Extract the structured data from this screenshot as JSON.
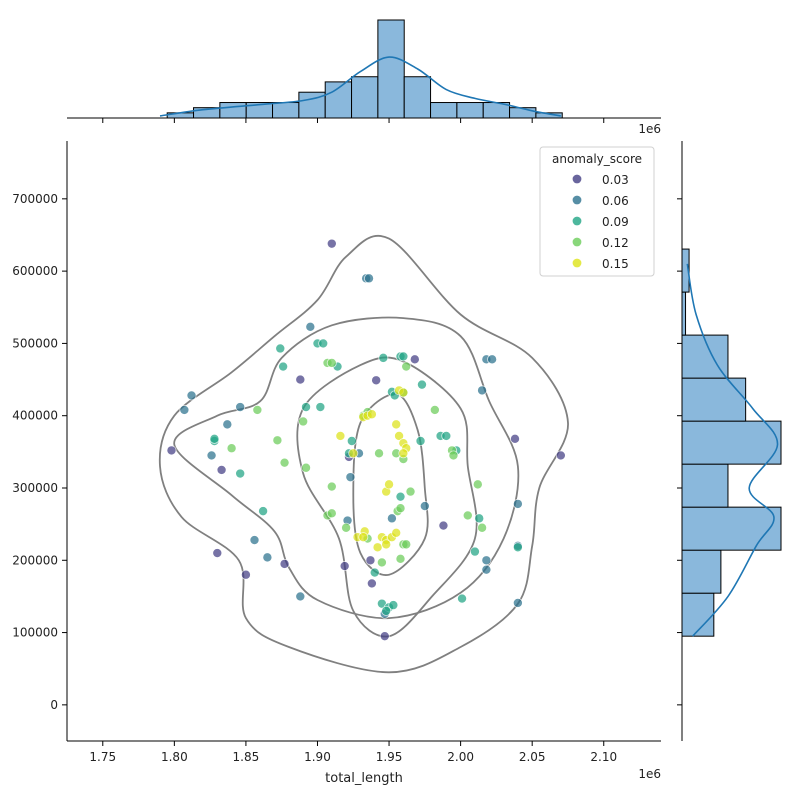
{
  "chart_data": {
    "type": "scatter",
    "xlabel": "total_length",
    "ylabel": "",
    "x_offset_label": "1e6",
    "xlim": [
      1.725,
      2.14
    ],
    "ylim": [
      -50000,
      780000
    ],
    "xticks": [
      1.75,
      1.8,
      1.85,
      1.9,
      1.95,
      2.0,
      2.05,
      2.1
    ],
    "yticks": [
      0,
      100000,
      200000,
      300000,
      400000,
      500000,
      600000,
      700000
    ],
    "legend": {
      "title": "anomaly_score",
      "placement": "top-right",
      "entries": [
        {
          "label": "0.03",
          "color": "#433e85"
        },
        {
          "label": "0.06",
          "color": "#2c728e"
        },
        {
          "label": "0.09",
          "color": "#21a585"
        },
        {
          "label": "0.12",
          "color": "#6ccd5a"
        },
        {
          "label": "0.15",
          "color": "#dde318"
        }
      ]
    },
    "marginal_x": {
      "bin_start": 1.795,
      "bin_width": 0.0184,
      "counts": [
        1,
        2,
        3,
        3,
        3,
        5,
        7,
        8,
        19,
        8,
        3,
        3,
        3,
        2,
        1
      ]
    },
    "marginal_x_kde": [
      [
        1.79,
        0.4
      ],
      [
        1.82,
        1.6
      ],
      [
        1.86,
        2.6
      ],
      [
        1.89,
        3.4
      ],
      [
        1.91,
        5.0
      ],
      [
        1.93,
        9.0
      ],
      [
        1.95,
        11.8
      ],
      [
        1.97,
        9.5
      ],
      [
        1.99,
        5.5
      ],
      [
        2.01,
        3.8
      ],
      [
        2.03,
        2.7
      ],
      [
        2.05,
        1.4
      ],
      [
        2.07,
        0.4
      ]
    ],
    "marginal_y": {
      "bin_start": 95000,
      "bin_width": 59500,
      "counts": [
        9,
        11,
        28,
        13,
        28,
        18,
        13,
        1,
        2
      ]
    },
    "marginal_y_kde": [
      [
        95000,
        3
      ],
      [
        150000,
        13
      ],
      [
        220000,
        21
      ],
      [
        260000,
        26
      ],
      [
        300000,
        19
      ],
      [
        360000,
        27
      ],
      [
        410000,
        20
      ],
      [
        470000,
        10
      ],
      [
        540000,
        4
      ],
      [
        610000,
        1.5
      ]
    ],
    "contours": [
      [
        [
          1.95,
          645000
        ],
        [
          2.0,
          540000
        ],
        [
          2.05,
          480000
        ],
        [
          2.075,
          390000
        ],
        [
          2.055,
          300000
        ],
        [
          2.05,
          220000
        ],
        [
          2.04,
          140000
        ],
        [
          2.0,
          80000
        ],
        [
          1.95,
          45000
        ],
        [
          1.88,
          80000
        ],
        [
          1.85,
          120000
        ],
        [
          1.845,
          200000
        ],
        [
          1.805,
          260000
        ],
        [
          1.79,
          330000
        ],
        [
          1.8,
          400000
        ],
        [
          1.84,
          460000
        ],
        [
          1.87,
          510000
        ],
        [
          1.9,
          560000
        ],
        [
          1.92,
          620000
        ]
      ],
      [
        [
          1.96,
          535000
        ],
        [
          2.0,
          510000
        ],
        [
          2.02,
          420000
        ],
        [
          2.04,
          330000
        ],
        [
          2.03,
          230000
        ],
        [
          2.0,
          155000
        ],
        [
          1.95,
          120000
        ],
        [
          1.9,
          145000
        ],
        [
          1.88,
          190000
        ],
        [
          1.87,
          240000
        ],
        [
          1.84,
          290000
        ],
        [
          1.8,
          360000
        ],
        [
          1.83,
          400000
        ],
        [
          1.86,
          420000
        ],
        [
          1.875,
          480000
        ],
        [
          1.91,
          525000
        ]
      ],
      [
        [
          1.96,
          475000
        ],
        [
          2.0,
          410000
        ],
        [
          2.005,
          330000
        ],
        [
          2.01,
          230000
        ],
        [
          1.98,
          150000
        ],
        [
          1.95,
          95000
        ],
        [
          1.925,
          130000
        ],
        [
          1.915,
          230000
        ],
        [
          1.89,
          320000
        ],
        [
          1.89,
          410000
        ],
        [
          1.93,
          470000
        ]
      ],
      [
        [
          1.955,
          430000
        ],
        [
          1.97,
          380000
        ],
        [
          1.975,
          300000
        ],
        [
          1.975,
          230000
        ],
        [
          1.95,
          180000
        ],
        [
          1.93,
          210000
        ],
        [
          1.925,
          290000
        ],
        [
          1.93,
          390000
        ]
      ]
    ],
    "series": [
      {
        "name": "0.03",
        "color": "#433e85",
        "points": [
          [
            1.91,
            638000
          ],
          [
            1.888,
            450000
          ],
          [
            1.941,
            449000
          ],
          [
            1.968,
            478000
          ],
          [
            1.798,
            352000
          ],
          [
            1.833,
            325000
          ],
          [
            1.877,
            195000
          ],
          [
            1.919,
            192000
          ],
          [
            1.938,
            168000
          ],
          [
            1.947,
            95000
          ],
          [
            1.988,
            248000
          ],
          [
            2.038,
            368000
          ],
          [
            2.07,
            345000
          ],
          [
            1.85,
            180000
          ],
          [
            1.83,
            210000
          ],
          [
            1.922,
            343000
          ],
          [
            1.937,
            200000
          ]
        ]
      },
      {
        "name": "0.06",
        "color": "#2c728e",
        "points": [
          [
            1.812,
            428000
          ],
          [
            1.807,
            408000
          ],
          [
            1.846,
            412000
          ],
          [
            1.837,
            388000
          ],
          [
            1.826,
            345000
          ],
          [
            1.856,
            228000
          ],
          [
            1.865,
            204000
          ],
          [
            1.888,
            150000
          ],
          [
            1.934,
            590000
          ],
          [
            1.936,
            590000
          ],
          [
            1.895,
            523000
          ],
          [
            2.018,
            478000
          ],
          [
            2.022,
            478000
          ],
          [
            2.015,
            435000
          ],
          [
            2.018,
            200000
          ],
          [
            2.018,
            187000
          ],
          [
            2.04,
            141000
          ],
          [
            2.04,
            278000
          ],
          [
            2.04,
            220000
          ],
          [
            1.921,
            255000
          ],
          [
            1.923,
            315000
          ],
          [
            1.929,
            348000
          ],
          [
            1.947,
            126000
          ],
          [
            1.975,
            275000
          ],
          [
            1.952,
            258000
          ]
        ]
      },
      {
        "name": "0.09",
        "color": "#21a585",
        "points": [
          [
            1.828,
            365000
          ],
          [
            1.828,
            368000
          ],
          [
            1.846,
            320000
          ],
          [
            1.862,
            268000
          ],
          [
            1.874,
            493000
          ],
          [
            1.876,
            468000
          ],
          [
            1.9,
            500000
          ],
          [
            1.904,
            500000
          ],
          [
            1.914,
            468000
          ],
          [
            1.946,
            480000
          ],
          [
            1.958,
            482000
          ],
          [
            1.96,
            482000
          ],
          [
            1.973,
            443000
          ],
          [
            1.952,
            433000
          ],
          [
            1.96,
            432000
          ],
          [
            1.954,
            428000
          ],
          [
            1.924,
            365000
          ],
          [
            1.922,
            348000
          ],
          [
            1.94,
            183000
          ],
          [
            1.945,
            140000
          ],
          [
            1.95,
            135000
          ],
          [
            1.953,
            138000
          ],
          [
            1.948,
            130000
          ],
          [
            1.972,
            365000
          ],
          [
            1.986,
            372000
          ],
          [
            1.99,
            372000
          ],
          [
            1.997,
            352000
          ],
          [
            2.001,
            147000
          ],
          [
            2.01,
            212000
          ],
          [
            2.013,
            258000
          ],
          [
            2.04,
            218000
          ],
          [
            1.902,
            412000
          ],
          [
            1.892,
            412000
          ],
          [
            1.958,
            288000
          ]
        ]
      },
      {
        "name": "0.12",
        "color": "#6ccd5a",
        "points": [
          [
            1.84,
            355000
          ],
          [
            1.858,
            408000
          ],
          [
            1.872,
            366000
          ],
          [
            1.877,
            335000
          ],
          [
            1.89,
            392000
          ],
          [
            1.892,
            328000
          ],
          [
            1.907,
            262000
          ],
          [
            1.91,
            265000
          ],
          [
            1.91,
            302000
          ],
          [
            1.907,
            473000
          ],
          [
            1.91,
            473000
          ],
          [
            1.945,
            197000
          ],
          [
            1.958,
            202000
          ],
          [
            1.956,
            268000
          ],
          [
            1.958,
            272000
          ],
          [
            1.96,
            340000
          ],
          [
            1.955,
            348000
          ],
          [
            1.965,
            295000
          ],
          [
            1.96,
            222000
          ],
          [
            1.982,
            408000
          ],
          [
            1.994,
            352000
          ],
          [
            1.995,
            345000
          ],
          [
            2.005,
            262000
          ],
          [
            2.012,
            305000
          ],
          [
            2.015,
            245000
          ],
          [
            1.932,
            400000
          ],
          [
            1.935,
            405000
          ],
          [
            1.92,
            245000
          ],
          [
            1.935,
            230000
          ],
          [
            1.962,
            222000
          ],
          [
            1.943,
            348000
          ],
          [
            1.962,
            468000
          ]
        ]
      },
      {
        "name": "0.15",
        "color": "#dde318",
        "points": [
          [
            1.916,
            372000
          ],
          [
            1.925,
            348000
          ],
          [
            1.932,
            398000
          ],
          [
            1.935,
            400000
          ],
          [
            1.928,
            232000
          ],
          [
            1.933,
            240000
          ],
          [
            1.932,
            232000
          ],
          [
            1.942,
            218000
          ],
          [
            1.945,
            232000
          ],
          [
            1.948,
            228000
          ],
          [
            1.952,
            232000
          ],
          [
            1.955,
            238000
          ],
          [
            1.948,
            295000
          ],
          [
            1.95,
            305000
          ],
          [
            1.955,
            388000
          ],
          [
            1.957,
            372000
          ],
          [
            1.96,
            362000
          ],
          [
            1.962,
            355000
          ],
          [
            1.957,
            435000
          ],
          [
            1.96,
            432000
          ],
          [
            1.948,
            222000
          ],
          [
            1.96,
            348000
          ],
          [
            1.938,
            402000
          ]
        ]
      }
    ]
  }
}
